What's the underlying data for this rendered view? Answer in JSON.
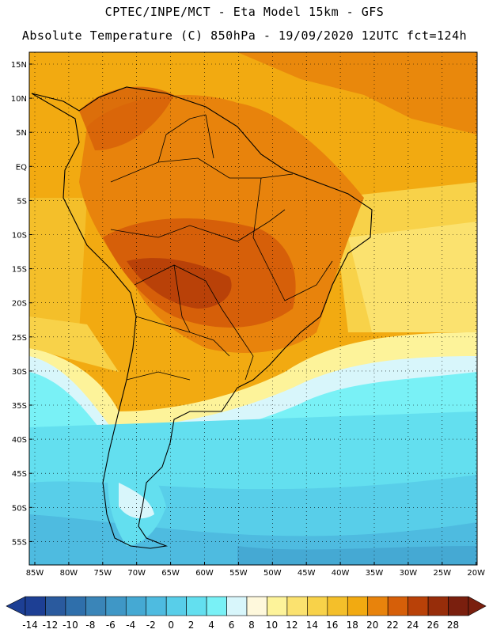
{
  "header": {
    "line1": "CPTEC/INPE/MCT -   Eta Model 15km - GFS",
    "line2": "Absolute Temperature (C) 850hPa - 19/09/2020 12UTC fct=124h"
  },
  "map": {
    "lat_labels": [
      "15N",
      "10N",
      "5N",
      "EQ",
      "5S",
      "10S",
      "15S",
      "20S",
      "25S",
      "30S",
      "35S",
      "40S",
      "45S",
      "50S",
      "55S"
    ],
    "lon_labels": [
      "85W",
      "80W",
      "75W",
      "70W",
      "65W",
      "60W",
      "55W",
      "50W",
      "45W",
      "40W",
      "35W",
      "30W",
      "25W",
      "20W"
    ],
    "grid": "dotted"
  },
  "colorbar": {
    "labels": [
      "-14",
      "-12",
      "-10",
      "-8",
      "-6",
      "-4",
      "-2",
      "0",
      "2",
      "4",
      "6",
      "8",
      "10",
      "12",
      "14",
      "16",
      "18",
      "20",
      "22",
      "24",
      "26",
      "28"
    ],
    "colors": [
      "#1d3f94",
      "#2a5a9e",
      "#2f6fab",
      "#3a85b8",
      "#3f97c6",
      "#45a9d3",
      "#4ebbe0",
      "#58cee9",
      "#63dfef",
      "#79f1f6",
      "#d8f6fb",
      "#fef8dc",
      "#fdf39a",
      "#fbe26f",
      "#f8d249",
      "#f4bf2a",
      "#f2aa11",
      "#e8830c",
      "#d65f09",
      "#b94108",
      "#972d0a",
      "#7a1f0e"
    ],
    "units": "C"
  }
}
